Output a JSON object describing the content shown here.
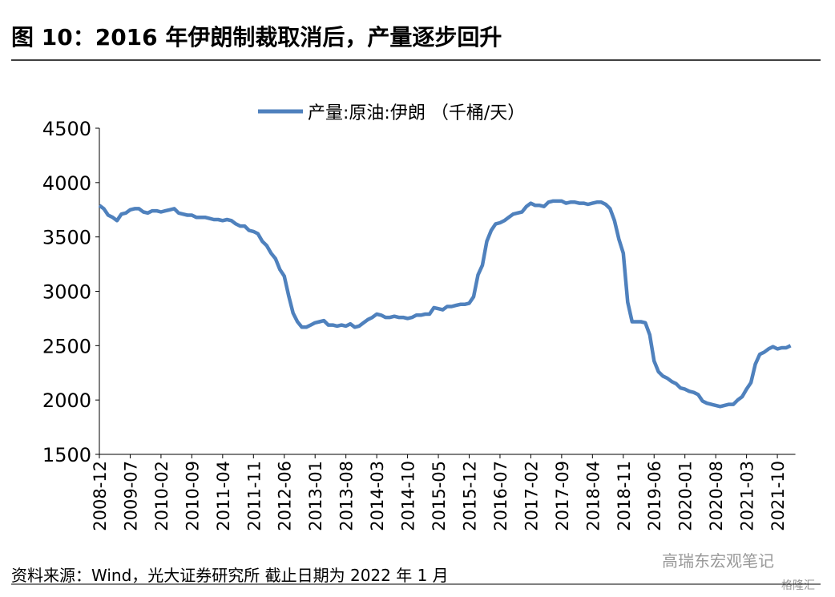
{
  "chart_data": {
    "type": "line",
    "title": "图 10：2016 年伊朗制裁取消后，产量逐步回升",
    "source": "资料来源：Wind，光大证券研究所  截止日期为 2022 年 1 月",
    "watermark": [
      "高瑞东宏观笔记",
      "格隆汇"
    ],
    "categories": [
      "2008-12",
      null,
      null,
      null,
      null,
      null,
      null,
      "2009-07",
      null,
      null,
      null,
      null,
      null,
      null,
      "2010-02",
      null,
      null,
      null,
      null,
      null,
      null,
      "2010-09",
      null,
      null,
      null,
      null,
      null,
      null,
      "2011-04",
      null,
      null,
      null,
      null,
      null,
      null,
      "2011-11",
      null,
      null,
      null,
      null,
      null,
      null,
      "2012-06",
      null,
      null,
      null,
      null,
      null,
      null,
      "2013-01",
      null,
      null,
      null,
      null,
      null,
      null,
      "2013-08",
      null,
      null,
      null,
      null,
      null,
      null,
      "2014-03",
      null,
      null,
      null,
      null,
      null,
      null,
      "2014-10",
      null,
      null,
      null,
      null,
      null,
      null,
      "2015-05",
      null,
      null,
      null,
      null,
      null,
      null,
      "2015-12",
      null,
      null,
      null,
      null,
      null,
      null,
      "2016-07",
      null,
      null,
      null,
      null,
      null,
      null,
      "2017-02",
      null,
      null,
      null,
      null,
      null,
      null,
      "2017-09",
      null,
      null,
      null,
      null,
      null,
      null,
      "2018-04",
      null,
      null,
      null,
      null,
      null,
      null,
      "2018-11",
      null,
      null,
      null,
      null,
      null,
      null,
      "2019-06",
      null,
      null,
      null,
      null,
      null,
      null,
      "2020-01",
      null,
      null,
      null,
      null,
      null,
      null,
      "2020-08",
      null,
      null,
      null,
      null,
      null,
      null,
      "2021-03",
      null,
      null,
      null,
      null,
      null,
      null,
      "2021-10",
      null,
      null,
      null
    ],
    "series": [
      {
        "name": "产量:原油:伊朗 （千桶/天）",
        "color": "#4f81bd",
        "values": [
          3790,
          3760,
          3700,
          3680,
          3650,
          3710,
          3720,
          3750,
          3760,
          3760,
          3730,
          3720,
          3740,
          3740,
          3730,
          3740,
          3750,
          3760,
          3720,
          3710,
          3700,
          3700,
          3680,
          3680,
          3680,
          3670,
          3660,
          3660,
          3650,
          3660,
          3650,
          3620,
          3600,
          3600,
          3560,
          3550,
          3530,
          3460,
          3420,
          3350,
          3300,
          3200,
          3140,
          2960,
          2800,
          2720,
          2670,
          2670,
          2690,
          2710,
          2720,
          2730,
          2690,
          2690,
          2680,
          2690,
          2680,
          2700,
          2670,
          2680,
          2710,
          2740,
          2760,
          2790,
          2780,
          2760,
          2760,
          2770,
          2760,
          2760,
          2750,
          2760,
          2780,
          2780,
          2790,
          2790,
          2850,
          2840,
          2830,
          2860,
          2860,
          2870,
          2880,
          2880,
          2890,
          2950,
          3150,
          3240,
          3460,
          3560,
          3620,
          3630,
          3650,
          3680,
          3710,
          3720,
          3730,
          3780,
          3810,
          3790,
          3790,
          3780,
          3820,
          3830,
          3830,
          3830,
          3810,
          3820,
          3820,
          3810,
          3810,
          3800,
          3810,
          3820,
          3820,
          3800,
          3760,
          3650,
          3480,
          3350,
          2900,
          2720,
          2720,
          2720,
          2710,
          2600,
          2360,
          2260,
          2220,
          2200,
          2170,
          2150,
          2110,
          2100,
          2080,
          2070,
          2050,
          1990,
          1970,
          1960,
          1950,
          1940,
          1950,
          1960,
          1960,
          2000,
          2030,
          2100,
          2160,
          2330,
          2420,
          2440,
          2470,
          2490,
          2470,
          2480,
          2480,
          2500
        ]
      }
    ],
    "ylim": [
      1500,
      4500
    ],
    "yticks": [
      1500,
      2000,
      2500,
      3000,
      3500,
      4000,
      4500
    ],
    "grid": false
  }
}
